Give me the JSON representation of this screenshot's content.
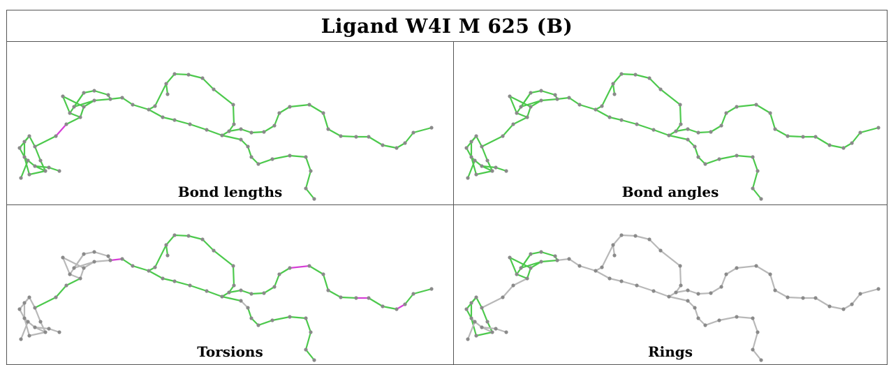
{
  "title": "Ligand W4I M 625 (B)",
  "panels": [
    {
      "caption": "Bond lengths",
      "highlight": [
        [
          3,
          4
        ]
      ],
      "gray": []
    },
    {
      "caption": "Bond angles",
      "highlight": [],
      "gray": []
    },
    {
      "caption": "Torsions",
      "highlight": [
        [
          8,
          9
        ],
        [
          32,
          33
        ],
        [
          37,
          38
        ],
        [
          40,
          41
        ]
      ],
      "gray": "tail"
    },
    {
      "caption": "Rings",
      "highlight": [],
      "gray": "non-ring"
    }
  ],
  "colors": {
    "good": "#4cc94c",
    "outlier": "#d63fd6",
    "neutral": "#b8b8b8",
    "atom": "#8a8a8a"
  }
}
